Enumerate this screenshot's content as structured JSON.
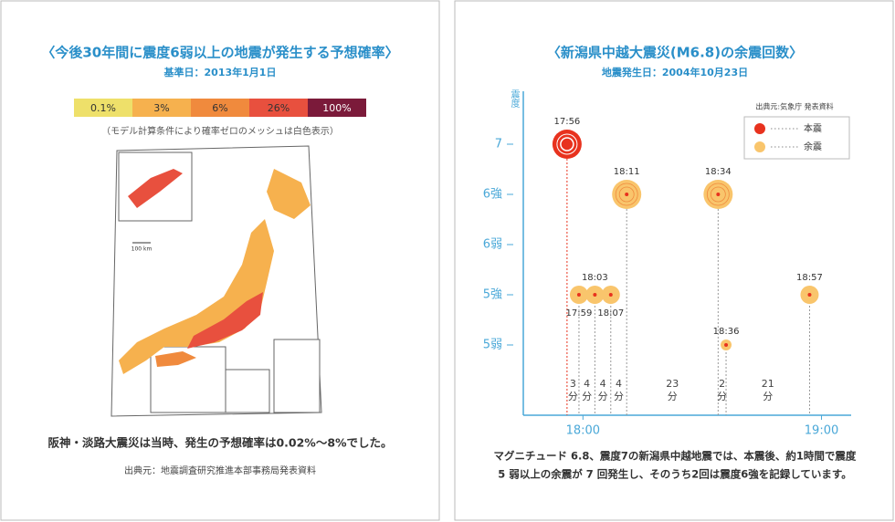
{
  "left_panel": {
    "title": "〈今後30年間に震度6弱以上の地震が発生する予想確率〉",
    "subtitle": "基準日：2013年1月1日",
    "legend": [
      {
        "label": "0.1%",
        "color": "#eee06a"
      },
      {
        "label": "3%",
        "color": "#f6b14e"
      },
      {
        "label": "6%",
        "color": "#f08a3d"
      },
      {
        "label": "26%",
        "color": "#e8503e"
      },
      {
        "label": "100%",
        "color": "#7b1a3a"
      }
    ],
    "note": "（モデル計算条件により確率ゼロのメッシュは白色表示）",
    "scale_label": "100 km",
    "caption": "阪神・淡路大震災は当時、発生の予想確率は0.02%〜8%でした。",
    "source": "出典元：地震調査研究推進本部事務局発表資料"
  },
  "chart_data": {
    "type": "scatter",
    "title": "〈新潟県中越大震災(M6.8)の余震回数〉",
    "subtitle": "地震発生日：2004年10月23日",
    "y_label": "震度",
    "yticks": [
      "5弱",
      "5強",
      "6弱",
      "6強",
      "7"
    ],
    "xlim": [
      "17:45",
      "19:07"
    ],
    "xticks": [
      "18:00",
      "19:00"
    ],
    "source": "出典元:気象庁 発表資料",
    "series": [
      {
        "name": "本震",
        "color": "#e8321e",
        "x": [
          "17:56"
        ],
        "values": [
          "7"
        ]
      },
      {
        "name": "余震",
        "color": "#f9c56c",
        "x": [
          "17:59",
          "18:03",
          "18:07",
          "18:11",
          "18:34",
          "18:36",
          "18:57"
        ],
        "values": [
          "5強",
          "5強",
          "5強",
          "6強",
          "6強",
          "5弱",
          "5強"
        ]
      }
    ],
    "intervals": [
      3,
      4,
      4,
      4,
      23,
      2,
      21
    ],
    "interval_unit": "分",
    "caption": [
      "マグニチュード 6.8、震度7の新潟県中越地震では、本震後、約1時間で震度",
      "5 弱以上の余震が 7 回発生し、そのうち2回は震度6強を記録しています。"
    ]
  }
}
